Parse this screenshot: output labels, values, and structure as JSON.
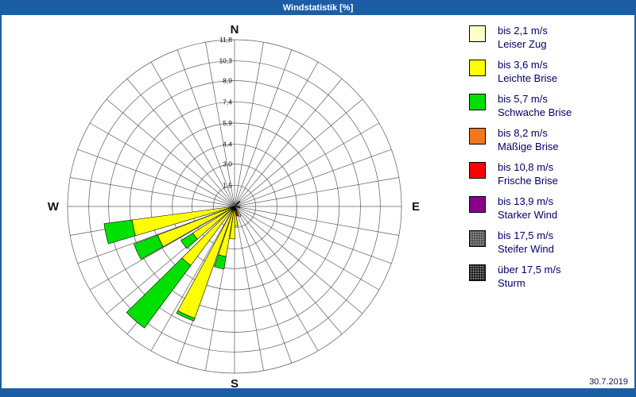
{
  "window": {
    "title": "Windstatistik [%]"
  },
  "footer": {
    "date": "30.7.2019"
  },
  "compass": {
    "north": "N",
    "south": "S",
    "west": "W",
    "east": "E"
  },
  "colors": {
    "frame": "#1b5ea6",
    "titlebar": "#1b5ea6",
    "grid": "#5a5a5a",
    "legend_text": "#000066",
    "tick_text": "#111111"
  },
  "chart_data": {
    "type": "windrose",
    "title": "Windstatistik [%]",
    "units": "%",
    "max_value": 11.8,
    "ring_tick_labels": [
      "1,5",
      "3,0",
      "4,4",
      "5,9",
      "7,4",
      "8,9",
      "10,3",
      "11,8"
    ],
    "ring_tick_values": [
      1.5,
      3.0,
      4.4,
      5.9,
      7.4,
      8.9,
      10.3,
      11.8
    ],
    "spoke_step_deg": 10,
    "sector_width_deg": 9,
    "legend_position": "right",
    "speed_classes": [
      {
        "id": "leiser_zug",
        "label": "bis 2,1 m/s",
        "name": "Leiser Zug",
        "color": "#ffffc8"
      },
      {
        "id": "leichte_brise",
        "label": "bis 3,6 m/s",
        "name": "Leichte Brise",
        "color": "#ffff00"
      },
      {
        "id": "schwache_brise",
        "label": "bis 5,7 m/s",
        "name": "Schwache Brise",
        "color": "#00e000"
      },
      {
        "id": "maessige_brise",
        "label": "bis 8,2 m/s",
        "name": "Mäßige Brise",
        "color": "#f07820"
      },
      {
        "id": "frische_brise",
        "label": "bis 10,8 m/s",
        "name": "Frische Brise",
        "color": "#ff0000"
      },
      {
        "id": "starker_wind",
        "label": "bis 13,9 m/s",
        "name": "Starker Wind",
        "color": "#880088"
      },
      {
        "id": "steifer_wind",
        "label": "bis 17,5 m/s",
        "name": "Steifer Wind",
        "color": "#4f4f4f",
        "texture": "speckle"
      },
      {
        "id": "sturm",
        "label": "über 17,5 m/s",
        "name": "Sturm",
        "color": "#161616",
        "texture": "speckle"
      }
    ],
    "sectors": [
      {
        "direction_deg": 258,
        "segments": [
          {
            "class": "leiser_zug",
            "value": 0.4
          },
          {
            "class": "leichte_brise",
            "value": 6.9
          },
          {
            "class": "schwache_brise",
            "value": 2.0
          }
        ]
      },
      {
        "direction_deg": 245,
        "segments": [
          {
            "class": "leiser_zug",
            "value": 0.3
          },
          {
            "class": "leichte_brise",
            "value": 5.5
          },
          {
            "class": "schwache_brise",
            "value": 1.8
          }
        ]
      },
      {
        "direction_deg": 233,
        "segments": [
          {
            "class": "leiser_zug",
            "value": 0.3
          },
          {
            "class": "leichte_brise",
            "value": 3.2
          },
          {
            "class": "schwache_brise",
            "value": 1.0
          }
        ]
      },
      {
        "direction_deg": 221,
        "segments": [
          {
            "class": "leiser_zug",
            "value": 0.3
          },
          {
            "class": "leichte_brise",
            "value": 4.9
          },
          {
            "class": "schwache_brise",
            "value": 5.5
          }
        ]
      },
      {
        "direction_deg": 204,
        "segments": [
          {
            "class": "leiser_zug",
            "value": 0.3
          },
          {
            "class": "leichte_brise",
            "value": 8.1
          },
          {
            "class": "schwache_brise",
            "value": 0.2
          }
        ]
      },
      {
        "direction_deg": 194,
        "segments": [
          {
            "class": "leichte_brise",
            "value": 3.6
          },
          {
            "class": "schwache_brise",
            "value": 0.9
          }
        ]
      },
      {
        "direction_deg": 184,
        "segments": [
          {
            "class": "leichte_brise",
            "value": 2.3
          }
        ]
      },
      {
        "direction_deg": 175,
        "segments": [
          {
            "class": "leichte_brise",
            "value": 1.4
          }
        ]
      },
      {
        "direction_deg": 162,
        "segments": [
          {
            "class": "frische_brise",
            "value": 0.7
          }
        ]
      },
      {
        "direction_deg": 150,
        "segments": [
          {
            "class": "leichte_brise",
            "value": 0.8
          }
        ]
      },
      {
        "direction_deg": 98,
        "segments": [
          {
            "class": "sturm",
            "value": 0.4
          }
        ]
      },
      {
        "direction_deg": 45,
        "segments": [
          {
            "class": "sturm",
            "value": 0.5
          }
        ]
      }
    ]
  }
}
